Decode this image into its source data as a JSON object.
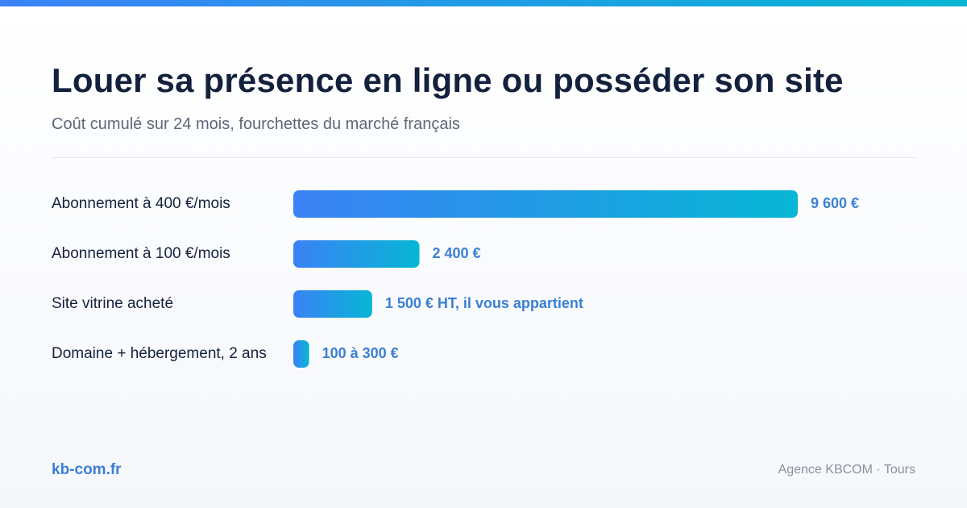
{
  "colors": {
    "accent_start": "#3b82f6",
    "accent_end": "#06b6d4",
    "value_label": "#3b7fd6",
    "title": "#14213d"
  },
  "header": {
    "title": "Louer sa présence en ligne ou posséder son site",
    "subtitle": "Coût cumulé sur 24 mois, fourchettes du marché français"
  },
  "chart_data": {
    "type": "bar",
    "orientation": "horizontal",
    "categories": [
      "Abonnement à 400 €/mois",
      "Abonnement à 100 €/mois",
      "Site vitrine acheté",
      "Domaine + hébergement, 2 ans"
    ],
    "values": [
      9600,
      2400,
      1500,
      300
    ],
    "value_labels": [
      "9 600 €",
      "2 400 €",
      "1 500 € HT, il vous appartient",
      "100 à 300 €"
    ],
    "xlim": [
      0,
      9600
    ],
    "grid": false,
    "legend": "none"
  },
  "footer": {
    "site": "kb-com.fr",
    "agency": "Agence KBCOM · Tours"
  }
}
